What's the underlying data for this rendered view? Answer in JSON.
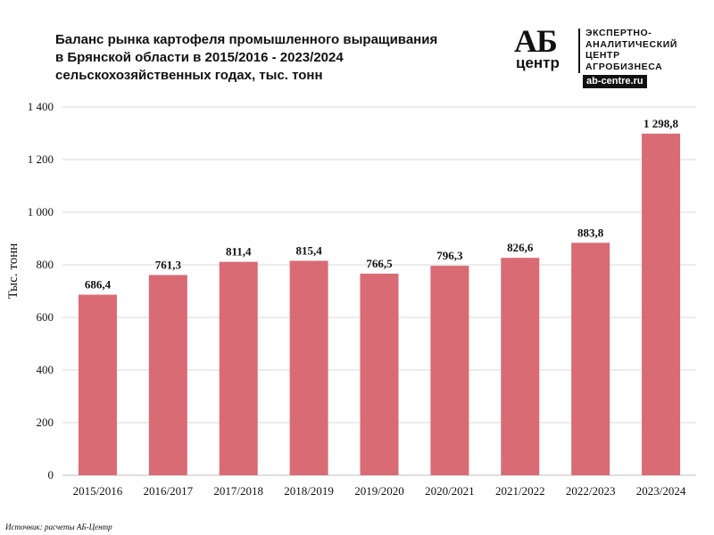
{
  "title_lines": [
    "Баланс рынка картофеля промышленного выращивания",
    "в Брянской области в 2015/2016 - 2023/2024",
    "сельскохозяйственных годах, тыс. тонн"
  ],
  "logo": {
    "mark_top": "АБ",
    "mark_bottom": "центр",
    "lines": [
      "ЭКСПЕРТНО-",
      "АНАЛИТИЧЕСКИЙ",
      "ЦЕНТР",
      "АГРОБИЗНЕСА"
    ],
    "url": "ab-centre.ru"
  },
  "source": "Источник: расчеты АБ-Центр",
  "colors": {
    "bar": "#d96b75",
    "grid": "#d9d9d9",
    "text": "#111111"
  },
  "chart_data": {
    "type": "bar",
    "categories": [
      "2015/2016",
      "2016/2017",
      "2017/2018",
      "2018/2019",
      "2019/2020",
      "2020/2021",
      "2021/2022",
      "2022/2023",
      "2023/2024"
    ],
    "values": [
      686.4,
      761.3,
      811.4,
      815.4,
      766.5,
      796.3,
      826.6,
      883.8,
      1298.8
    ],
    "value_labels": [
      "686,4",
      "761,3",
      "811,4",
      "815,4",
      "766,5",
      "796,3",
      "826,6",
      "883,8",
      "1 298,8"
    ],
    "ylabel": "Тыс. тонн",
    "xlabel": "",
    "ylim": [
      0,
      1400
    ],
    "yticks": [
      0,
      200,
      400,
      600,
      800,
      1000,
      1200,
      1400
    ],
    "ytick_labels": [
      "0",
      "200",
      "400",
      "600",
      "800",
      "1 000",
      "1 200",
      "1 400"
    ],
    "grid": true
  }
}
